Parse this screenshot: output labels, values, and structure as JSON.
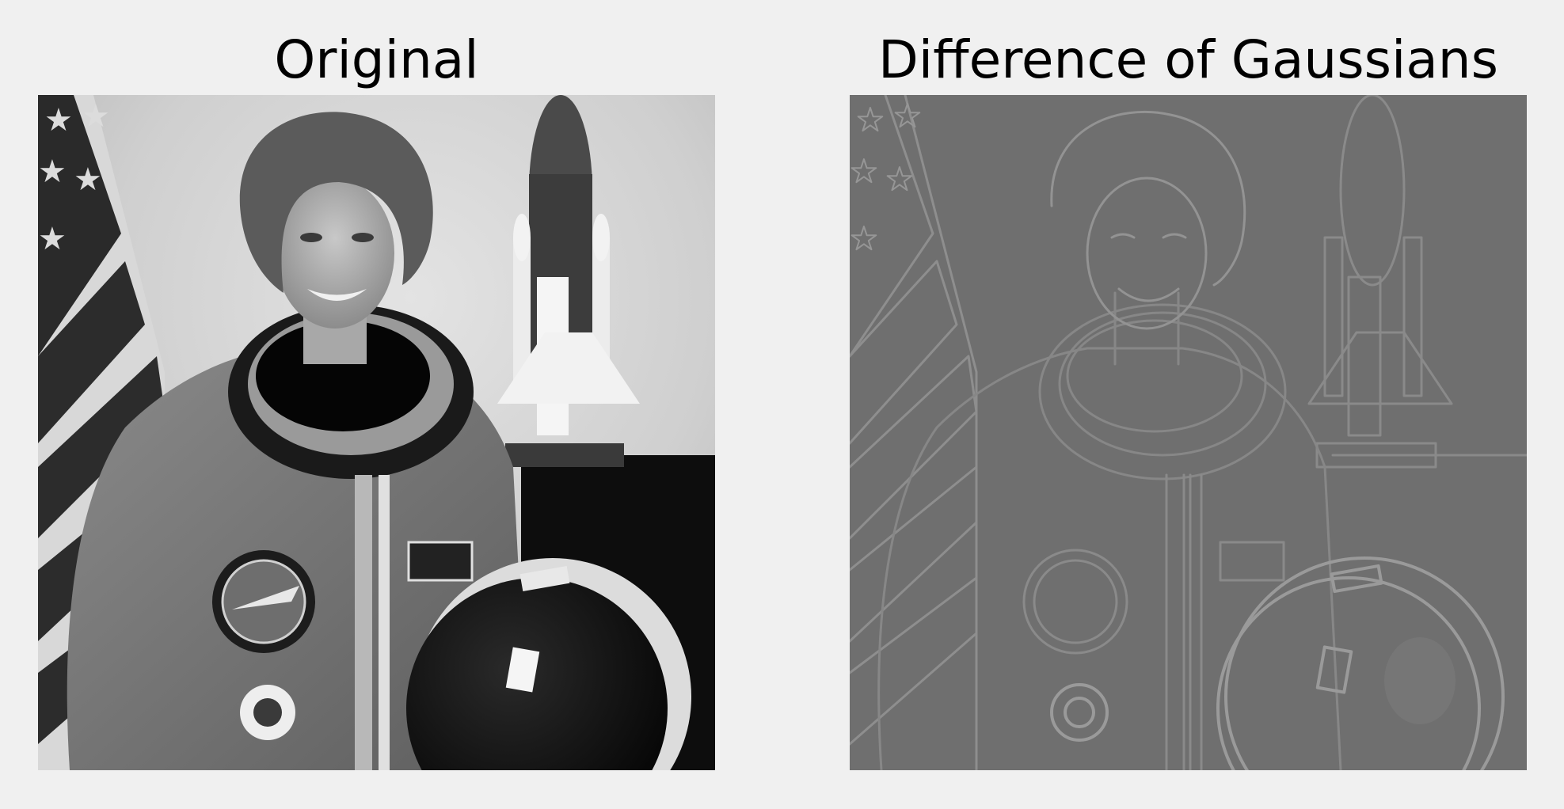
{
  "figure": {
    "panels": [
      {
        "title": "Original",
        "image": "astronaut-portrait-grayscale"
      },
      {
        "title": "Difference of Gaussians",
        "image": "astronaut-portrait-difference-of-gaussians-edges"
      }
    ]
  }
}
